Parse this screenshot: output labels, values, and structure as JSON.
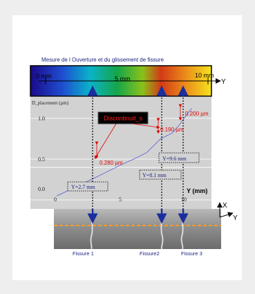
{
  "figure": {
    "title": "Mesure de l Ouverture et du glissement de fissure",
    "colorbar": {
      "label_0": "0 mm",
      "label_5": "5 mm",
      "label_10": "10 mm",
      "axis_y": "Y"
    },
    "plot": {
      "ylabel": "D_placement (µm)",
      "yticks": [
        "1.0",
        "0.5",
        "0.0"
      ],
      "xticks": [
        "0",
        "5",
        "10"
      ],
      "xlabel": "Y (mm)",
      "legend_box": "Discontinuit_s",
      "annotations": {
        "a280": "0.280 µm",
        "a190": "0.190 µm",
        "a200": "0.200 µm",
        "y27": "Y=2.7 mm",
        "y81": "Y=8.1 mm",
        "y96": "Y=9.6 mm"
      }
    },
    "photo": {
      "axis_x": "X",
      "axis_y": "Y",
      "fissures": [
        "Fissure 1",
        "Fissure2",
        "Fissure 3"
      ]
    }
  },
  "chart_data": {
    "type": "line",
    "xlabel": "Y (mm)",
    "ylabel": "D_placement (µm)",
    "xlim": [
      0,
      10.5
    ],
    "ylim": [
      0,
      1.2
    ],
    "series": [
      {
        "x": [
          0,
          1,
          2,
          2.7,
          4,
          5,
          6,
          7,
          8.1,
          9,
          9.6,
          10,
          10.5
        ],
        "y": [
          0.05,
          0.12,
          0.2,
          0.25,
          0.35,
          0.43,
          0.5,
          0.58,
          0.75,
          0.82,
          0.93,
          1.02,
          1.12
        ]
      }
    ],
    "discontinuities": [
      {
        "y_mm": 2.7,
        "jump_um": 0.28
      },
      {
        "y_mm": 8.1,
        "jump_um": 0.19
      },
      {
        "y_mm": 9.6,
        "jump_um": 0.2
      }
    ]
  }
}
